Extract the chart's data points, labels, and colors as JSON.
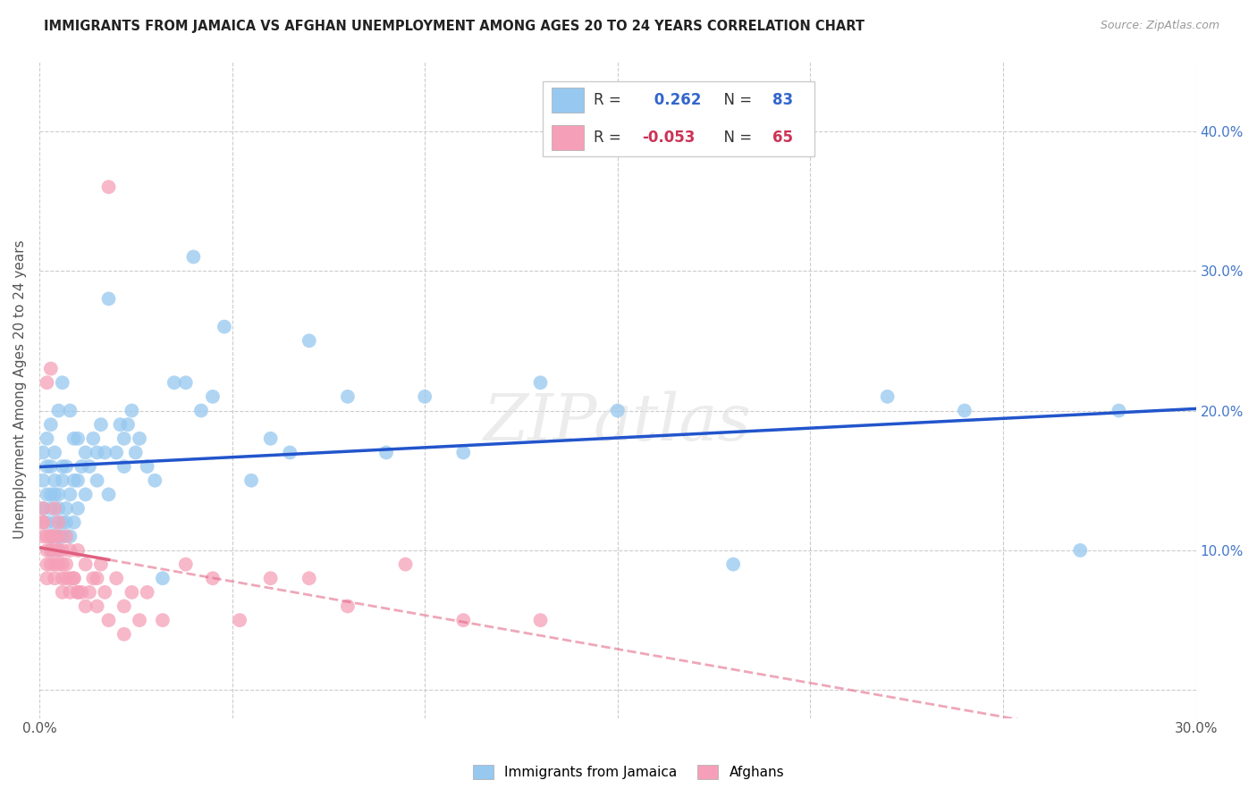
{
  "title": "IMMIGRANTS FROM JAMAICA VS AFGHAN UNEMPLOYMENT AMONG AGES 20 TO 24 YEARS CORRELATION CHART",
  "source": "Source: ZipAtlas.com",
  "ylabel": "Unemployment Among Ages 20 to 24 years",
  "xlim": [
    0.0,
    0.3
  ],
  "ylim": [
    -0.02,
    0.45
  ],
  "xticks": [
    0.0,
    0.05,
    0.1,
    0.15,
    0.2,
    0.25,
    0.3
  ],
  "yticks": [
    0.0,
    0.1,
    0.2,
    0.3,
    0.4
  ],
  "background_color": "#ffffff",
  "grid_color": "#cccccc",
  "blue_color": "#96c8f0",
  "pink_color": "#f5a0b8",
  "blue_line_color": "#2255cc",
  "pink_line_color": "#e06080",
  "R_blue": 0.262,
  "N_blue": 83,
  "R_pink": -0.053,
  "N_pink": 65,
  "blue_scatter_x": [
    0.001,
    0.001,
    0.001,
    0.002,
    0.002,
    0.002,
    0.002,
    0.003,
    0.003,
    0.003,
    0.003,
    0.003,
    0.004,
    0.004,
    0.004,
    0.004,
    0.005,
    0.005,
    0.005,
    0.005,
    0.006,
    0.006,
    0.006,
    0.006,
    0.007,
    0.007,
    0.008,
    0.008,
    0.009,
    0.009,
    0.01,
    0.01,
    0.011,
    0.012,
    0.013,
    0.014,
    0.015,
    0.016,
    0.017,
    0.018,
    0.02,
    0.021,
    0.022,
    0.023,
    0.024,
    0.025,
    0.026,
    0.028,
    0.03,
    0.032,
    0.035,
    0.038,
    0.04,
    0.042,
    0.045,
    0.048,
    0.055,
    0.06,
    0.065,
    0.07,
    0.08,
    0.09,
    0.1,
    0.11,
    0.13,
    0.15,
    0.18,
    0.22,
    0.24,
    0.27,
    0.28,
    0.003,
    0.004,
    0.005,
    0.006,
    0.007,
    0.008,
    0.009,
    0.01,
    0.012,
    0.015,
    0.018,
    0.022
  ],
  "blue_scatter_y": [
    0.13,
    0.15,
    0.17,
    0.12,
    0.14,
    0.16,
    0.18,
    0.11,
    0.13,
    0.14,
    0.16,
    0.19,
    0.12,
    0.14,
    0.15,
    0.17,
    0.11,
    0.13,
    0.14,
    0.2,
    0.12,
    0.15,
    0.16,
    0.22,
    0.13,
    0.16,
    0.14,
    0.2,
    0.15,
    0.18,
    0.15,
    0.18,
    0.16,
    0.17,
    0.16,
    0.18,
    0.17,
    0.19,
    0.17,
    0.28,
    0.17,
    0.19,
    0.18,
    0.19,
    0.2,
    0.17,
    0.18,
    0.16,
    0.15,
    0.08,
    0.22,
    0.22,
    0.31,
    0.2,
    0.21,
    0.26,
    0.15,
    0.18,
    0.17,
    0.25,
    0.21,
    0.17,
    0.21,
    0.17,
    0.22,
    0.2,
    0.09,
    0.21,
    0.2,
    0.1,
    0.2,
    0.1,
    0.11,
    0.1,
    0.11,
    0.12,
    0.11,
    0.12,
    0.13,
    0.14,
    0.15,
    0.14,
    0.16
  ],
  "pink_scatter_x": [
    0.001,
    0.001,
    0.001,
    0.001,
    0.002,
    0.002,
    0.002,
    0.002,
    0.003,
    0.003,
    0.003,
    0.003,
    0.004,
    0.004,
    0.004,
    0.004,
    0.005,
    0.005,
    0.005,
    0.006,
    0.006,
    0.006,
    0.007,
    0.007,
    0.008,
    0.008,
    0.009,
    0.01,
    0.01,
    0.011,
    0.012,
    0.013,
    0.014,
    0.015,
    0.016,
    0.017,
    0.018,
    0.02,
    0.022,
    0.024,
    0.028,
    0.032,
    0.038,
    0.045,
    0.052,
    0.06,
    0.07,
    0.08,
    0.095,
    0.11,
    0.13,
    0.002,
    0.003,
    0.004,
    0.005,
    0.006,
    0.007,
    0.008,
    0.009,
    0.01,
    0.012,
    0.015,
    0.018,
    0.022,
    0.026
  ],
  "pink_scatter_y": [
    0.11,
    0.12,
    0.12,
    0.13,
    0.09,
    0.1,
    0.11,
    0.22,
    0.1,
    0.11,
    0.11,
    0.23,
    0.09,
    0.1,
    0.11,
    0.13,
    0.1,
    0.11,
    0.12,
    0.08,
    0.09,
    0.1,
    0.09,
    0.11,
    0.08,
    0.1,
    0.08,
    0.07,
    0.1,
    0.07,
    0.09,
    0.07,
    0.08,
    0.08,
    0.09,
    0.07,
    0.36,
    0.08,
    0.06,
    0.07,
    0.07,
    0.05,
    0.09,
    0.08,
    0.05,
    0.08,
    0.08,
    0.06,
    0.09,
    0.05,
    0.05,
    0.08,
    0.09,
    0.08,
    0.09,
    0.07,
    0.08,
    0.07,
    0.08,
    0.07,
    0.06,
    0.06,
    0.05,
    0.04,
    0.05
  ]
}
